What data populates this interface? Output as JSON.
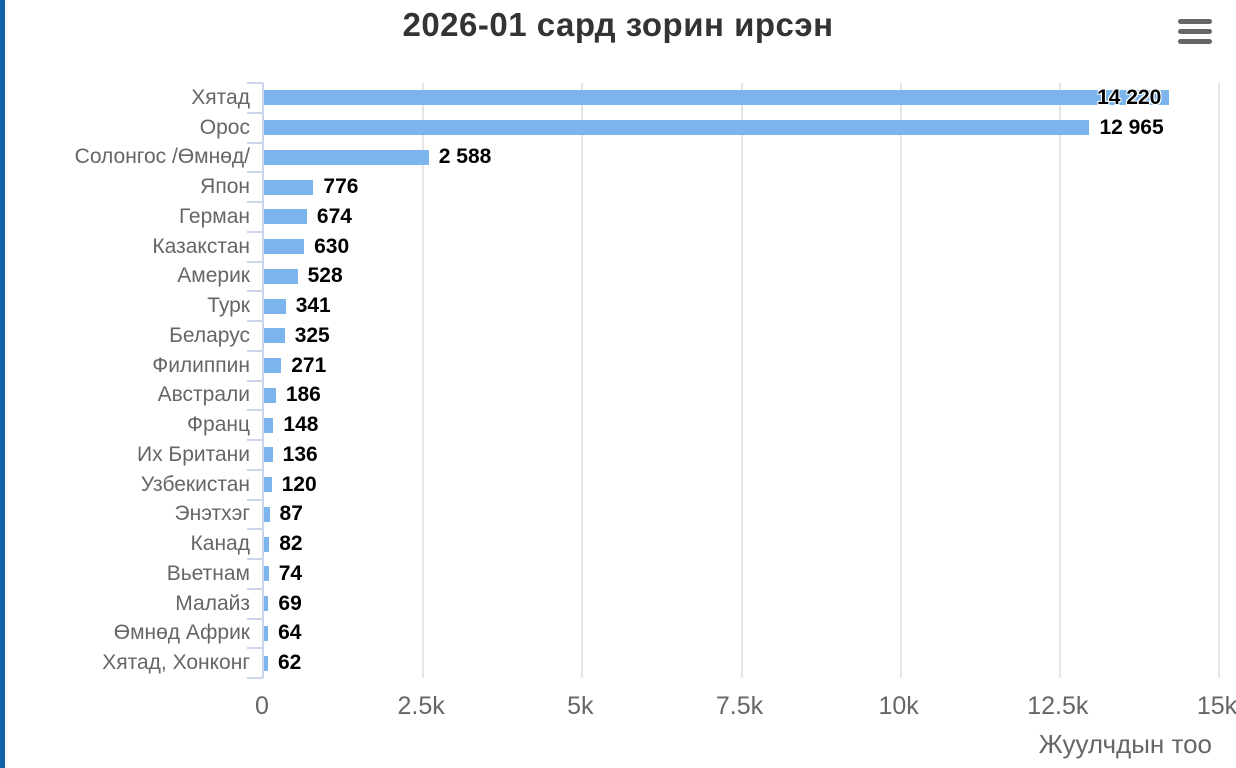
{
  "title": "2026-01 сард зорин ирсэн",
  "menu": {
    "icon": "hamburger-icon",
    "color": "#666666"
  },
  "accent_color": "#1262ab",
  "chart_data": {
    "type": "bar",
    "orientation": "horizontal",
    "title": "2026-01 сард зорин ирсэн",
    "xlabel": "Жуулчдын тоо",
    "ylabel": "",
    "xlim": [
      0,
      15000
    ],
    "grid": true,
    "legend": false,
    "bar_color": "#7cb5ec",
    "gridline_color": "#e6e6e6",
    "axis_color": "#ccd6eb",
    "categories": [
      "Хятад",
      "Орос",
      "Солонгос /Өмнөд/",
      "Япон",
      "Герман",
      "Казакстан",
      "Америк",
      "Турк",
      "Беларус",
      "Филиппин",
      "Австрали",
      "Франц",
      "Их Британи",
      "Узбекистан",
      "Энэтхэг",
      "Канад",
      "Вьетнам",
      "Малайз",
      "Өмнөд Африк",
      "Хятад, Хонконг"
    ],
    "values": [
      14220,
      12965,
      2588,
      776,
      674,
      630,
      528,
      341,
      325,
      271,
      186,
      148,
      136,
      120,
      87,
      82,
      74,
      69,
      64,
      62
    ],
    "value_labels": [
      "14 220",
      "12 965",
      "2 588",
      "776",
      "674",
      "630",
      "528",
      "341",
      "325",
      "271",
      "186",
      "148",
      "136",
      "120",
      "87",
      "82",
      "74",
      "69",
      "64",
      "62"
    ],
    "xticks": [
      {
        "label": "0",
        "value": 0
      },
      {
        "label": "2.5k",
        "value": 2500
      },
      {
        "label": "5k",
        "value": 5000
      },
      {
        "label": "7.5k",
        "value": 7500
      },
      {
        "label": "10k",
        "value": 10000
      },
      {
        "label": "12.5k",
        "value": 12500
      },
      {
        "label": "15k",
        "value": 15000
      }
    ]
  }
}
